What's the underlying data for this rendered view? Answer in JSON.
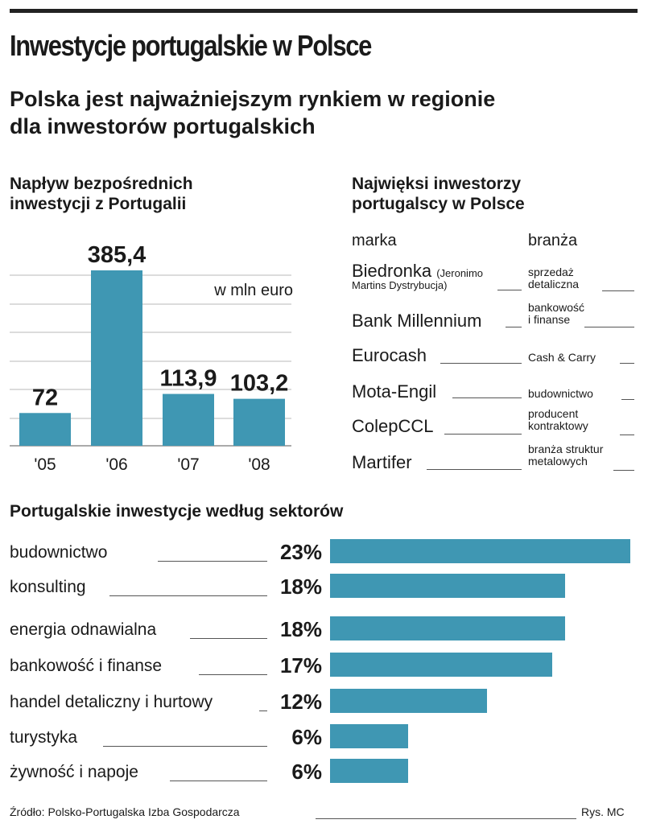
{
  "title": "Inwestycje portugalskie w Polsce",
  "subtitle_line1": "Polska jest najważniejszym rynkiem w regionie",
  "subtitle_line2": "dla inwestorów portugalskich",
  "colors": {
    "bar": "#3f97b3",
    "grid": "#b8b8b8",
    "text": "#1a1a1a"
  },
  "chart_data": [
    {
      "type": "bar",
      "title": "Napływ bezpośrednich inwestycji z Portugalii",
      "title_line1": "Napływ bezpośrednich",
      "title_line2": "inwestycji z Portugalii",
      "unit_label": "w mln euro",
      "categories": [
        "'05",
        "'06",
        "'07",
        "'08"
      ],
      "values": [
        72,
        385.4,
        113.9,
        103.2
      ],
      "value_labels": [
        "72",
        "385,4",
        "113,9",
        "103,2"
      ],
      "ylim": [
        0,
        385.4
      ],
      "grid": true
    },
    {
      "type": "bar",
      "orientation": "horizontal",
      "title": "Portugalskie inwestycje według sektorów",
      "categories": [
        "budownictwo",
        "konsulting",
        "energia odnawialna",
        "bankowość i finanse",
        "handel detaliczny i hurtowy",
        "turystyka",
        "żywność i napoje"
      ],
      "values": [
        23,
        18,
        18,
        17,
        12,
        6,
        6
      ],
      "value_labels": [
        "23%",
        "18%",
        "18%",
        "17%",
        "12%",
        "6%",
        "6%"
      ],
      "xlim": [
        0,
        23
      ]
    }
  ],
  "investors": {
    "title_line1": "Najwięksi inwestorzy",
    "title_line2": "portugalscy w Polsce",
    "col_brand": "marka",
    "col_industry": "branża",
    "rows": [
      {
        "brand": "Biedronka",
        "note": "(Jeronimo",
        "brand_line2": "Martins Dystrybucja)",
        "industry": "sprzedaż",
        "industry_line2": "detaliczna"
      },
      {
        "brand": "Bank Millennium",
        "industry": "bankowość",
        "industry_line2": "i finanse"
      },
      {
        "brand": "Eurocash",
        "industry": "Cash & Carry"
      },
      {
        "brand": "Mota-Engil",
        "industry": "budownictwo"
      },
      {
        "brand": "ColepCCL",
        "industry": "producent",
        "industry_line2": "kontraktowy"
      },
      {
        "brand": "Martifer",
        "industry": "branża struktur",
        "industry_line2": "metalowych"
      }
    ]
  },
  "source": "Źródło: Polsko-Portugalska Izba Gospodarcza",
  "credit": "Rys. MC"
}
